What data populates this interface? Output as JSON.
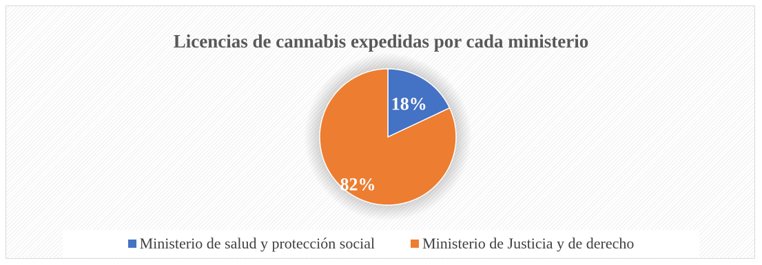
{
  "chart_data": {
    "type": "pie",
    "title": "Licencias de cannabis expedidas por cada ministerio",
    "slices": [
      {
        "label": "Ministerio de salud y protección social",
        "value": 18,
        "data_label": "18%",
        "color": "#4472C4"
      },
      {
        "label": "Ministerio de Justicia y de derecho",
        "value": 82,
        "data_label": "82%",
        "color": "#ED7D31"
      }
    ],
    "legend_position": "bottom"
  }
}
